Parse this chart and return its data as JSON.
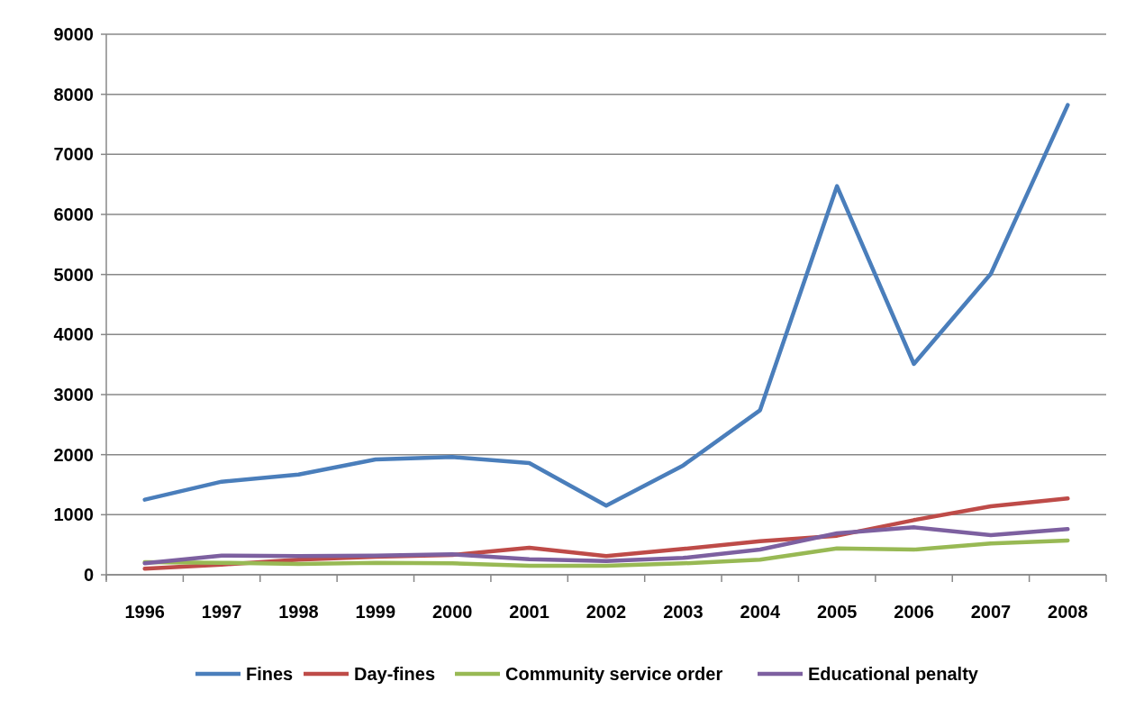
{
  "chart_data": {
    "type": "line",
    "categories": [
      "1996",
      "1997",
      "1998",
      "1999",
      "2000",
      "2001",
      "2002",
      "2003",
      "2004",
      "2005",
      "2006",
      "2007",
      "2008"
    ],
    "series": [
      {
        "name": "Fines",
        "color": "#4a7ebb",
        "values": [
          1250,
          1550,
          1670,
          1920,
          1960,
          1860,
          1150,
          1820,
          2740,
          6470,
          3510,
          5010,
          7820
        ]
      },
      {
        "name": "Day-fines",
        "color": "#be4b48",
        "values": [
          100,
          170,
          250,
          300,
          330,
          450,
          310,
          430,
          560,
          650,
          910,
          1140,
          1270
        ]
      },
      {
        "name": "Community service order",
        "color": "#98b954",
        "values": [
          210,
          200,
          180,
          200,
          190,
          150,
          150,
          190,
          250,
          440,
          420,
          520,
          570
        ]
      },
      {
        "name": "Educational penalty",
        "color": "#7d60a0",
        "values": [
          190,
          320,
          310,
          320,
          340,
          260,
          230,
          280,
          420,
          690,
          790,
          660,
          760
        ]
      }
    ],
    "ylim": [
      0,
      9000
    ],
    "yticks": [
      0,
      1000,
      2000,
      3000,
      4000,
      5000,
      6000,
      7000,
      8000,
      9000
    ],
    "grid": "y",
    "legend": "bottom",
    "marker": "none",
    "line_style": "solid"
  }
}
